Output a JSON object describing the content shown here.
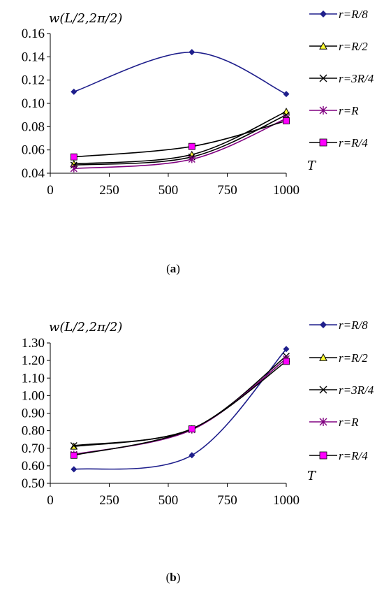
{
  "chart_data": [
    {
      "type": "line",
      "smooth": true,
      "caption_letter": "a",
      "ylabel": "w(L/2,2π/2)",
      "xlabel": "T",
      "x": [
        100,
        600,
        1000
      ],
      "xlim": [
        0,
        1000
      ],
      "ylim": [
        0.04,
        0.16
      ],
      "xticks": [
        0,
        250,
        500,
        750,
        1000
      ],
      "xtick_labels": [
        "0",
        "250",
        "500",
        "750",
        "1000"
      ],
      "yticks": [
        0.04,
        0.06,
        0.08,
        0.1,
        0.12,
        0.14,
        0.16
      ],
      "ytick_labels": [
        "0.04",
        "0.06",
        "0.08",
        "0.10",
        "0.12",
        "0.14",
        "0.16"
      ],
      "legend_position": "right",
      "series": [
        {
          "name": "r=R/8",
          "values": [
            0.11,
            0.144,
            0.108
          ],
          "color": "#1f1f8c",
          "marker": "diamond"
        },
        {
          "name": "r=R/2",
          "values": [
            0.048,
            0.056,
            0.093
          ],
          "color": "#000000",
          "marker": "triangle",
          "marker_fill": "#ffff33"
        },
        {
          "name": "r=3R/4",
          "values": [
            0.047,
            0.054,
            0.09
          ],
          "color": "#000000",
          "marker": "x"
        },
        {
          "name": "r=R",
          "values": [
            0.044,
            0.052,
            0.087
          ],
          "color": "#800080",
          "marker": "star"
        },
        {
          "name": "r=R/4",
          "values": [
            0.054,
            0.063,
            0.085
          ],
          "color": "#000000",
          "marker": "square",
          "marker_fill": "#ff00ff"
        }
      ]
    },
    {
      "type": "line",
      "smooth": true,
      "caption_letter": "b",
      "ylabel": "w(L/2,2π/2)",
      "xlabel": "T",
      "x": [
        100,
        600,
        1000
      ],
      "xlim": [
        0,
        1000
      ],
      "ylim": [
        0.5,
        1.3
      ],
      "xticks": [
        0,
        250,
        500,
        750,
        1000
      ],
      "xtick_labels": [
        "0",
        "250",
        "500",
        "750",
        "1000"
      ],
      "yticks": [
        0.5,
        0.6,
        0.7,
        0.8,
        0.9,
        1.0,
        1.1,
        1.2,
        1.3
      ],
      "ytick_labels": [
        "0.50",
        "0.60",
        "0.70",
        "0.80",
        "0.90",
        "1.00",
        "1.10",
        "1.20",
        "1.30"
      ],
      "legend_position": "right",
      "series": [
        {
          "name": "r=R/8",
          "values": [
            0.58,
            0.66,
            1.265
          ],
          "color": "#1f1f8c",
          "marker": "diamond"
        },
        {
          "name": "r=R/2",
          "values": [
            0.71,
            0.81,
            1.21
          ],
          "color": "#000000",
          "marker": "triangle",
          "marker_fill": "#ffff33"
        },
        {
          "name": "r=3R/4",
          "values": [
            0.715,
            0.81,
            1.225
          ],
          "color": "#000000",
          "marker": "x"
        },
        {
          "name": "r=R",
          "values": [
            0.665,
            0.805,
            1.21
          ],
          "color": "#800080",
          "marker": "star"
        },
        {
          "name": "r=R/4",
          "values": [
            0.66,
            0.81,
            1.195
          ],
          "color": "#000000",
          "marker": "square",
          "marker_fill": "#ff00ff"
        }
      ]
    }
  ]
}
